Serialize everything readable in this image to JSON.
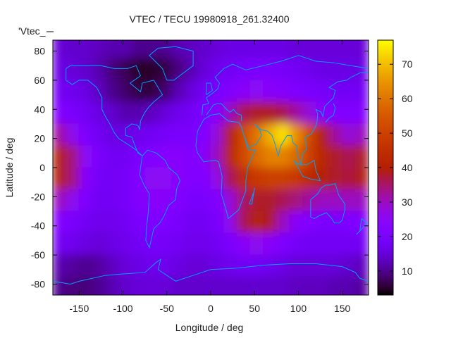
{
  "chart_data": {
    "type": "heatmap",
    "title": "VTEC / TECU 19980918_261.32400",
    "xlabel": "Longitude / deg",
    "ylabel": "Latitude / deg",
    "key_label": "'Vtec_",
    "xlim": [
      -180,
      180
    ],
    "ylim": [
      -87.5,
      87.5
    ],
    "xticks": [
      -150,
      -100,
      -50,
      0,
      50,
      100,
      150
    ],
    "yticks": [
      -80,
      -60,
      -40,
      -20,
      0,
      20,
      40,
      60,
      80
    ],
    "colorbar": {
      "range": [
        3,
        77
      ],
      "ticks": [
        10,
        20,
        30,
        40,
        50,
        60,
        70
      ],
      "palette": "black-purple-red-orange-yellow"
    },
    "coastline_color": "#00a0ff",
    "grid_lon_centers": [
      -172.5,
      -157.5,
      -142.5,
      -127.5,
      -112.5,
      -97.5,
      -82.5,
      -67.5,
      -52.5,
      -37.5,
      -22.5,
      -7.5,
      7.5,
      22.5,
      37.5,
      52.5,
      67.5,
      82.5,
      97.5,
      112.5,
      127.5,
      142.5,
      157.5,
      172.5
    ],
    "grid_lat_centers": [
      82.5,
      67.5,
      52.5,
      37.5,
      22.5,
      7.5,
      -7.5,
      -22.5,
      -37.5,
      -52.5,
      -67.5,
      -82.5
    ],
    "values": [
      [
        15,
        14,
        14,
        13,
        12,
        12,
        10,
        10,
        10,
        12,
        13,
        14,
        15,
        16,
        16,
        16,
        16,
        16,
        15,
        15,
        15,
        15,
        15,
        15
      ],
      [
        16,
        15,
        14,
        12,
        9,
        7,
        5,
        5,
        6,
        9,
        12,
        15,
        17,
        18,
        19,
        20,
        20,
        19,
        18,
        17,
        16,
        16,
        16,
        16
      ],
      [
        18,
        17,
        16,
        13,
        10,
        8,
        6,
        6,
        8,
        12,
        15,
        18,
        20,
        22,
        24,
        25,
        24,
        23,
        21,
        20,
        19,
        18,
        18,
        18
      ],
      [
        22,
        20,
        18,
        16,
        14,
        12,
        12,
        13,
        15,
        17,
        18,
        21,
        24,
        30,
        36,
        38,
        38,
        36,
        32,
        28,
        24,
        22,
        22,
        22
      ],
      [
        32,
        26,
        21,
        18,
        16,
        16,
        17,
        18,
        19,
        20,
        20,
        22,
        28,
        40,
        52,
        60,
        68,
        74,
        64,
        52,
        40,
        32,
        28,
        30
      ],
      [
        40,
        34,
        25,
        20,
        18,
        18,
        20,
        22,
        23,
        24,
        22,
        24,
        30,
        42,
        52,
        58,
        62,
        62,
        58,
        50,
        42,
        38,
        36,
        38
      ],
      [
        40,
        34,
        24,
        19,
        18,
        19,
        22,
        25,
        25,
        24,
        22,
        22,
        27,
        36,
        44,
        48,
        50,
        50,
        48,
        44,
        40,
        38,
        37,
        39
      ],
      [
        30,
        26,
        21,
        18,
        18,
        19,
        22,
        24,
        24,
        22,
        20,
        20,
        22,
        28,
        35,
        38,
        38,
        36,
        34,
        32,
        30,
        30,
        30,
        30
      ],
      [
        22,
        20,
        18,
        17,
        17,
        18,
        20,
        21,
        21,
        20,
        18,
        18,
        20,
        26,
        36,
        40,
        38,
        30,
        24,
        22,
        20,
        20,
        21,
        22
      ],
      [
        18,
        17,
        16,
        15,
        16,
        17,
        18,
        19,
        19,
        18,
        17,
        17,
        18,
        20,
        24,
        26,
        24,
        21,
        19,
        18,
        18,
        18,
        18,
        18
      ],
      [
        12,
        11,
        10,
        11,
        13,
        15,
        16,
        17,
        17,
        16,
        15,
        15,
        16,
        17,
        18,
        18,
        17,
        16,
        15,
        15,
        15,
        15,
        14,
        13
      ],
      [
        10,
        9,
        9,
        10,
        12,
        14,
        15,
        15,
        15,
        14,
        14,
        14,
        14,
        14,
        14,
        14,
        14,
        14,
        13,
        13,
        13,
        12,
        12,
        11
      ]
    ]
  }
}
